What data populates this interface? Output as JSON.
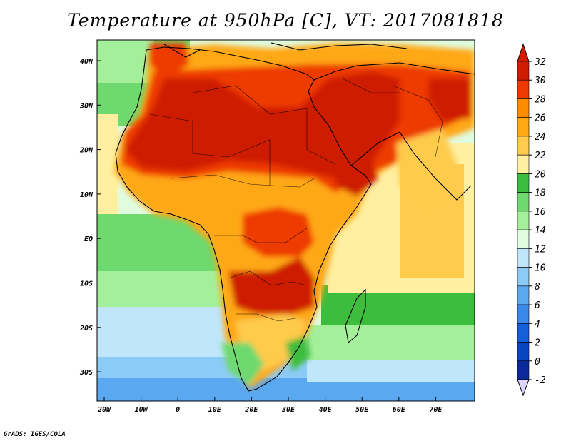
{
  "title": "Temperature at 950hPa [C], VT: 2017081818",
  "credit": "GrADS: IGES/COLA",
  "map": {
    "lat_labels": [
      "40N",
      "30N",
      "20N",
      "10N",
      "EQ",
      "10S",
      "20S",
      "30S"
    ],
    "lon_labels": [
      "20W",
      "10W",
      "0",
      "10E",
      "20E",
      "30E",
      "40E",
      "50E",
      "60E",
      "70E"
    ]
  },
  "colorbar": {
    "labels": [
      "32",
      "30",
      "28",
      "26",
      "24",
      "22",
      "20",
      "18",
      "16",
      "14",
      "12",
      "10",
      "8",
      "6",
      "4",
      "2",
      "0",
      "-2"
    ],
    "colors": [
      "#ce1c00",
      "#ee3a00",
      "#ff8c00",
      "#ffa814",
      "#ffcb4c",
      "#ffefa0",
      "#3cbd3c",
      "#6ed96e",
      "#a4f09a",
      "#e0fce0",
      "#bfe6fb",
      "#8ccbf5",
      "#5aa8f0",
      "#3a88e8",
      "#1560d8",
      "#0a45c0",
      "#0a2a9a",
      "#ddd4ff"
    ],
    "top_arrow_color": "#d81800"
  }
}
